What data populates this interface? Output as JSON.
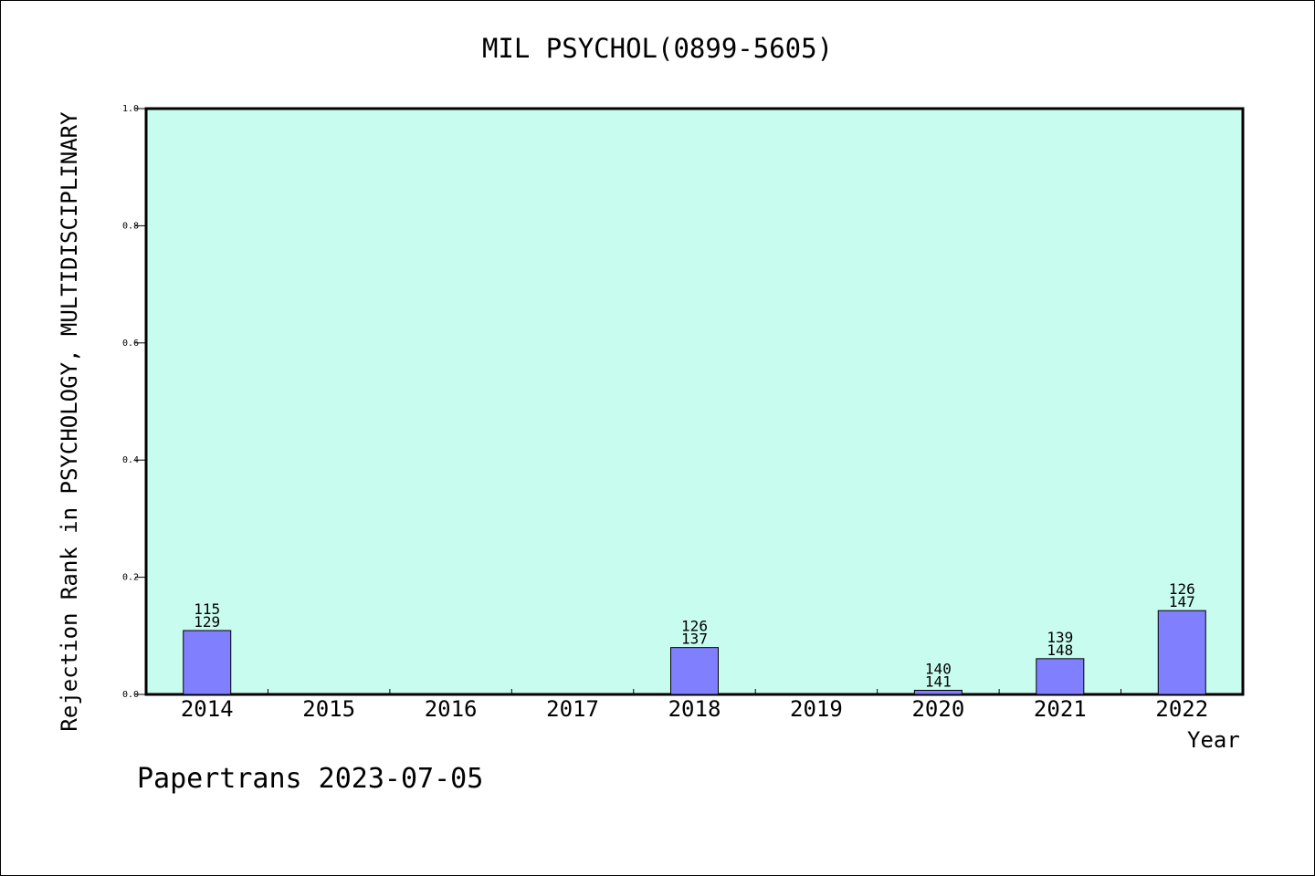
{
  "chart_data": {
    "type": "bar",
    "title": "MIL PSYCHOL(0899-5605)",
    "xlabel": "Year",
    "ylabel": "Rejection Rank in PSYCHOLOGY, MULTIDISCIPLINARY",
    "categories": [
      "2014",
      "2015",
      "2016",
      "2017",
      "2018",
      "2019",
      "2020",
      "2021",
      "2022"
    ],
    "values": [
      0.109,
      null,
      null,
      null,
      0.08,
      null,
      0.007,
      0.061,
      0.143
    ],
    "bar_labels": [
      [
        "115",
        "129"
      ],
      null,
      null,
      null,
      [
        "126",
        "137"
      ],
      null,
      [
        "140",
        "141"
      ],
      [
        "139",
        "148"
      ],
      [
        "126",
        "147"
      ]
    ],
    "ylim": [
      0,
      1.0
    ],
    "yticks": [
      "0.0",
      "0.2",
      "0.4",
      "0.6",
      "0.8",
      "1.0"
    ],
    "grid": false,
    "colors": {
      "plot_background": "#c8fcee",
      "bar_fill": "#8080ff",
      "bar_stroke": "#000000",
      "axis": "#000000"
    }
  },
  "footer": {
    "credit": "Papertrans 2023-07-05"
  }
}
